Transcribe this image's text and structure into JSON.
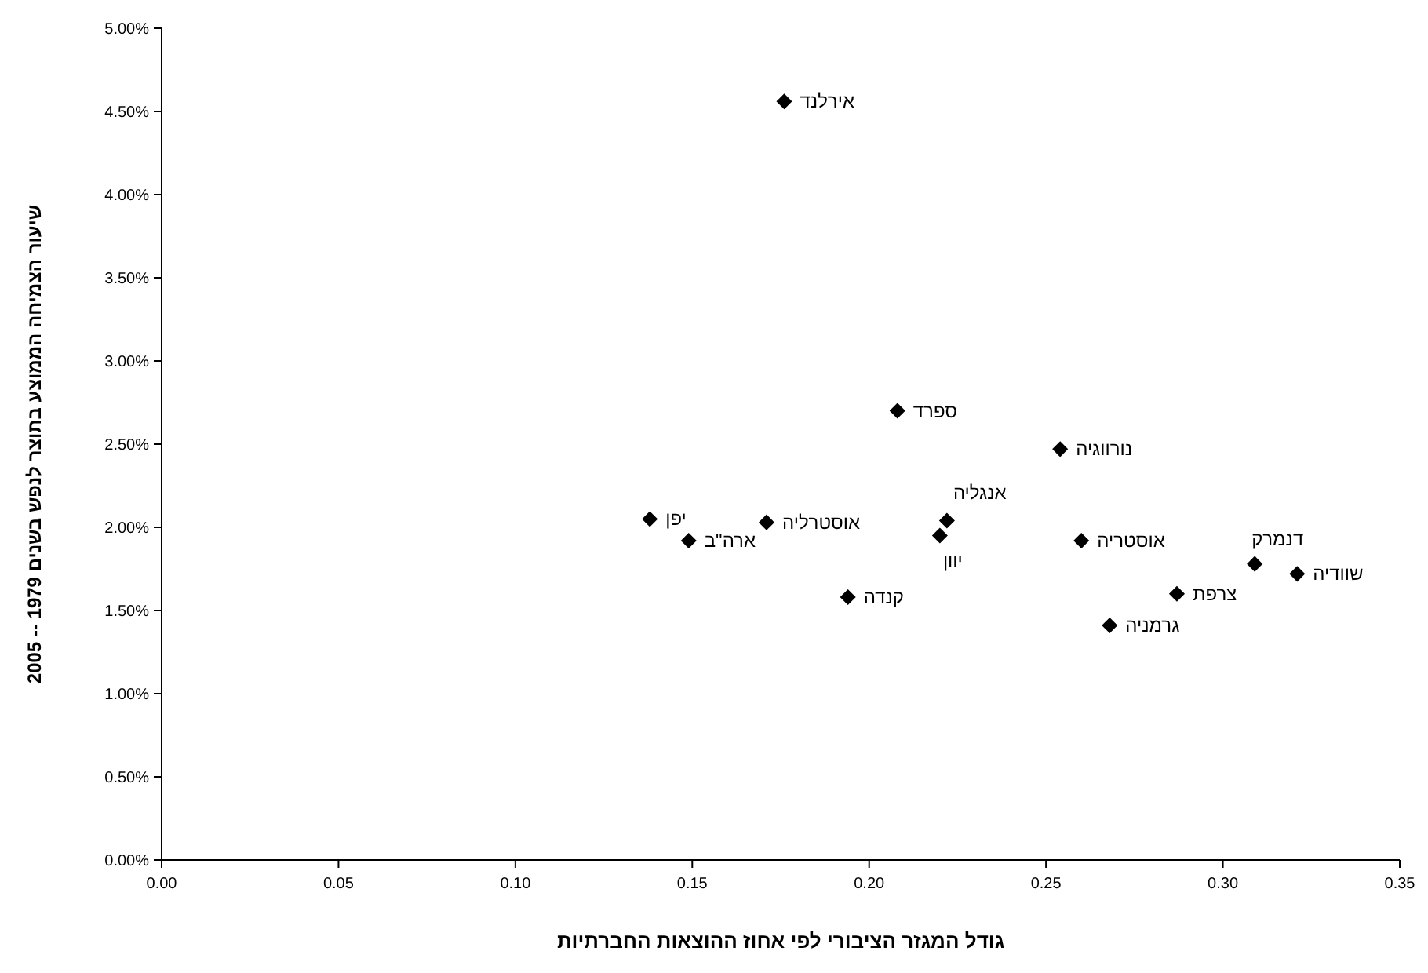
{
  "chart_data": {
    "type": "scatter",
    "xlabel": "גודל המגזר הציבורי לפי אחוז ההוצאות החברתיות",
    "ylabel": "שיעור הצמיחה הממוצע בתוצר לנפש בשנים 1979 -- 2005",
    "x": [
      0.176,
      0.208,
      0.254,
      0.138,
      0.149,
      0.171,
      0.222,
      0.22,
      0.26,
      0.194,
      0.287,
      0.268,
      0.309,
      0.321
    ],
    "series": [
      {
        "color": "#000000",
        "values": [
          4.56,
          2.7,
          2.47,
          2.05,
          1.92,
          2.03,
          2.04,
          1.95,
          1.92,
          1.58,
          1.6,
          1.41,
          1.78,
          1.72
        ]
      }
    ],
    "value_labels": [
      "אירלנד",
      "ספרד",
      "נורווגיה",
      "יפן",
      "ארה\"ב",
      "אוסטרליה",
      "אנגליה",
      "יוון",
      "אוסטריה",
      "קנדה",
      "צרפת",
      "גרמניה",
      "דנמרק",
      "שוודיה"
    ],
    "marker": "diamond",
    "grid": false,
    "xlim": [
      0,
      0.35
    ],
    "xticks": [
      {
        "value": 0,
        "label": "0.00"
      },
      {
        "value": 0.05,
        "label": "0.05"
      },
      {
        "value": 0.1,
        "label": "0.10"
      },
      {
        "value": 0.15,
        "label": "0.15"
      },
      {
        "value": 0.2,
        "label": "0.20"
      },
      {
        "value": 0.25,
        "label": "0.25"
      },
      {
        "value": 0.3,
        "label": "0.30"
      },
      {
        "value": 0.35,
        "label": "0.35"
      }
    ],
    "ylim": [
      0,
      5
    ],
    "yticks": [
      {
        "value": 0,
        "label": "0.00%"
      },
      {
        "value": 0.5,
        "label": "0.50%"
      },
      {
        "value": 1,
        "label": "1.00%"
      },
      {
        "value": 1.5,
        "label": "1.50%"
      },
      {
        "value": 2,
        "label": "2.00%"
      },
      {
        "value": 2.5,
        "label": "2.50%"
      },
      {
        "value": 3,
        "label": "3.00%"
      },
      {
        "value": 3.5,
        "label": "3.50%"
      },
      {
        "value": 4,
        "label": "4.00%"
      },
      {
        "value": 4.5,
        "label": "4.50%"
      },
      {
        "value": 5,
        "label": "5.00%"
      }
    ]
  }
}
